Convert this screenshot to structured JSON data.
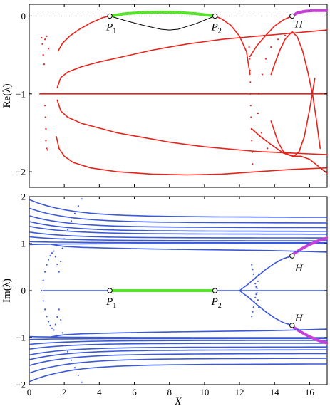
{
  "chart_data": [
    {
      "type": "scatter",
      "title": "",
      "xlabel": "",
      "ylabel": "Re(λ)",
      "xlim": [
        0,
        17
      ],
      "ylim": [
        -2.2,
        0.15
      ],
      "x_ticks": [
        0,
        2,
        4,
        6,
        8,
        10,
        12,
        14,
        16
      ],
      "y_ticks": [
        "0",
        "−1",
        "−2"
      ],
      "grid": false,
      "reference_line": {
        "y": 0,
        "style": "dashed"
      },
      "colors": {
        "branch": "#e8231c",
        "stable_segment": "#56e32a",
        "hopf_segment": "#c63fd6",
        "connector": "#000000"
      },
      "series": [
        {
          "style": "line",
          "color": "#e8231c",
          "x": [
            1.65,
            1.9,
            2.3,
            2.8,
            3.5,
            4.2,
            4.6
          ],
          "y": [
            -0.45,
            -0.35,
            -0.26,
            -0.18,
            -0.09,
            -0.02,
            0.0
          ]
        },
        {
          "style": "line",
          "color": "#e8231c",
          "x": [
            10.6,
            11.0,
            11.5,
            12.0,
            12.4,
            12.6
          ],
          "y": [
            0.0,
            -0.04,
            -0.12,
            -0.26,
            -0.46,
            -0.75
          ]
        },
        {
          "style": "line",
          "color": "#e8231c",
          "x": [
            1.55,
            1.7,
            2.0,
            2.5,
            3.5,
            5.0,
            7.0,
            9.0,
            11.0,
            13.0,
            15.0,
            17.0
          ],
          "y": [
            -1.55,
            -1.7,
            -1.8,
            -1.88,
            -1.95,
            -2.0,
            -2.03,
            -2.04,
            -2.03,
            -2.0,
            -1.97,
            -1.95
          ]
        },
        {
          "style": "line",
          "color": "#e8231c",
          "x": [
            1.6,
            1.8,
            2.2,
            3.0,
            4.0,
            5.0,
            6.0,
            7.0,
            8.0,
            9.0,
            10.0,
            11.0,
            12.0,
            13.0,
            14.0,
            15.0,
            16.0,
            17.0
          ],
          "y": [
            -0.92,
            -0.79,
            -0.72,
            -0.65,
            -0.59,
            -0.54,
            -0.49,
            -0.44,
            -0.4,
            -0.36,
            -0.33,
            -0.3,
            -0.28,
            -0.26,
            -0.24,
            -0.22,
            -0.2,
            -0.18
          ]
        },
        {
          "style": "line",
          "color": "#e8231c",
          "x": [
            0.6,
            17.0
          ],
          "y": [
            -1.0,
            -1.0
          ]
        },
        {
          "style": "line",
          "color": "#e8231c",
          "x": [
            1.6,
            1.8,
            2.2,
            3.0,
            4.0,
            5.0,
            6.0,
            7.0,
            8.0,
            9.0,
            10.0,
            11.0,
            12.0,
            13.0,
            14.0,
            15.0,
            16.0,
            17.0
          ],
          "y": [
            -1.08,
            -1.22,
            -1.3,
            -1.38,
            -1.44,
            -1.5,
            -1.54,
            -1.58,
            -1.62,
            -1.65,
            -1.68,
            -1.7,
            -1.72,
            -1.74,
            -1.75,
            -1.76,
            -1.77,
            -1.78
          ]
        },
        {
          "style": "line",
          "color": "#e8231c",
          "x": [
            12.6,
            13.0,
            13.5,
            14.0,
            14.5,
            15.0
          ],
          "y": [
            -0.52,
            -0.38,
            -0.25,
            -0.13,
            -0.05,
            0.0
          ]
        },
        {
          "style": "line",
          "color": "#e8231c",
          "x": [
            12.7,
            13.2,
            13.8,
            14.5,
            15.0,
            15.5,
            16.0,
            16.5,
            17.0
          ],
          "y": [
            -1.45,
            -1.55,
            -1.65,
            -1.76,
            -1.8,
            -1.8,
            -1.84,
            -1.93,
            -2.02
          ]
        },
        {
          "style": "line",
          "color": "#e8231c",
          "x": [
            13.8,
            14.2,
            14.5,
            14.8,
            15.1,
            15.4,
            15.7,
            16.0,
            16.3
          ],
          "y": [
            -1.35,
            -1.62,
            -1.74,
            -1.78,
            -1.8,
            -1.74,
            -1.55,
            -1.2,
            -0.8
          ]
        },
        {
          "style": "line",
          "color": "#e8231c",
          "x": [
            13.8,
            14.0,
            14.3,
            14.6,
            15.0,
            15.3,
            15.6,
            15.9,
            16.2,
            16.4,
            16.6
          ],
          "y": [
            -0.75,
            -0.62,
            -0.44,
            -0.3,
            -0.2,
            -0.27,
            -0.45,
            -0.72,
            -1.05,
            -1.35,
            -1.7
          ]
        },
        {
          "style": "dots",
          "color": "#e8231c",
          "x": [
            0.7,
            0.75,
            0.8,
            0.85,
            0.9,
            0.9,
            0.92,
            0.95,
            0.95,
            1.0,
            1.0,
            1.05,
            1.1
          ],
          "y": [
            -0.28,
            -0.36,
            -0.5,
            -0.62,
            -0.3,
            -1.15,
            -1.3,
            -1.45,
            -1.6,
            -1.7,
            -0.26,
            -1.72,
            -0.42
          ]
        },
        {
          "style": "dots",
          "color": "#e8231c",
          "x": [
            12.55,
            12.58,
            12.6,
            12.62,
            12.63,
            12.64,
            12.66,
            12.68,
            12.7,
            12.72,
            12.74
          ],
          "y": [
            -0.4,
            -0.55,
            -0.7,
            -0.85,
            -1.0,
            -1.15,
            -1.3,
            -1.45,
            -1.6,
            -1.75,
            -1.9
          ]
        },
        {
          "style": "dots",
          "color": "#e8231c",
          "x": [
            13.1,
            13.3,
            13.5,
            13.8,
            14.2,
            14.6,
            13.05,
            13.25,
            13.6
          ],
          "y": [
            -1.0,
            -0.75,
            -0.55,
            -0.4,
            -0.3,
            -0.25,
            -1.25,
            -1.5,
            -1.7
          ]
        },
        {
          "style": "line",
          "color": "#000000",
          "name": "",
          "x": [
            4.6,
            5.5,
            6.5,
            7.5,
            8.0,
            8.5,
            9.5,
            10.6
          ],
          "y": [
            0.0,
            -0.06,
            -0.12,
            -0.17,
            -0.18,
            -0.17,
            -0.1,
            0.0
          ]
        },
        {
          "style": "thick",
          "color": "#56e32a",
          "x": [
            4.6,
            5.5,
            6.5,
            7.5,
            8.5,
            9.5,
            10.6
          ],
          "y": [
            0.0,
            0.03,
            0.045,
            0.05,
            0.045,
            0.03,
            0.0
          ]
        },
        {
          "style": "thick",
          "color": "#c63fd6",
          "x": [
            15.0,
            15.3,
            15.7,
            16.2,
            17.0
          ],
          "y": [
            0.0,
            0.04,
            0.06,
            0.07,
            0.07
          ]
        }
      ],
      "points": [
        {
          "label": "P",
          "sub": "1",
          "x": 4.6,
          "y": 0.0
        },
        {
          "label": "P",
          "sub": "2",
          "x": 10.6,
          "y": 0.0
        },
        {
          "label": "H",
          "sub": "",
          "x": 15.0,
          "y": 0.0
        }
      ]
    },
    {
      "type": "scatter",
      "title": "",
      "xlabel": "X",
      "ylabel": "Im(λ)",
      "xlim": [
        0,
        17
      ],
      "ylim": [
        -2,
        2
      ],
      "x_ticks": [
        "0",
        "2",
        "4",
        "6",
        "8",
        "10",
        "12",
        "14",
        "16"
      ],
      "y_ticks": [
        "2",
        "1",
        "0",
        "−1",
        "−2"
      ],
      "grid": false,
      "colors": {
        "branch": "#3b59d6",
        "stable_segment": "#56e32a",
        "hopf_segment": "#c63fd6"
      },
      "branches_y0": [
        1.92,
        1.74,
        1.58,
        1.46,
        1.36,
        1.24,
        1.14,
        1.04,
        0.98
      ],
      "branches_y17": [
        1.56,
        1.44,
        1.34,
        1.26,
        1.2,
        1.12,
        1.06,
        1.02,
        1.0
      ],
      "series": [
        {
          "style": "line",
          "color": "#3b59d6",
          "x": [
            0.8,
            17.0
          ],
          "y": [
            0.0,
            0.0
          ]
        },
        {
          "style": "thick",
          "color": "#56e32a",
          "x": [
            4.6,
            10.6
          ],
          "y": [
            0.0,
            0.0
          ]
        },
        {
          "style": "line",
          "color": "#3b59d6",
          "x": [
            12.0,
            12.5,
            13.0,
            13.5,
            14.0,
            14.5,
            15.0
          ],
          "y": [
            0.0,
            0.14,
            0.3,
            0.45,
            0.58,
            0.68,
            0.74
          ]
        },
        {
          "style": "line",
          "color": "#3b59d6",
          "x": [
            12.0,
            12.5,
            13.0,
            13.5,
            14.0,
            14.5,
            15.0
          ],
          "y": [
            0.0,
            -0.14,
            -0.3,
            -0.45,
            -0.58,
            -0.68,
            -0.74
          ]
        },
        {
          "style": "thick",
          "color": "#c63fd6",
          "x": [
            15.0,
            15.5,
            16.0,
            16.5,
            17.0
          ],
          "y": [
            0.76,
            0.88,
            0.98,
            1.06,
            1.12
          ]
        },
        {
          "style": "thick",
          "color": "#c63fd6",
          "x": [
            15.0,
            15.5,
            16.0,
            16.5,
            17.0
          ],
          "y": [
            -0.76,
            -0.88,
            -0.98,
            -1.06,
            -1.12
          ]
        },
        {
          "style": "line",
          "color": "#3b59d6",
          "x": [
            1.3,
            2.0,
            3.0,
            4.0,
            5.0,
            6.5,
            8.0,
            10.0,
            12.0,
            14.0,
            16.0,
            17.0
          ],
          "y": [
            0.98,
            0.94,
            0.92,
            0.91,
            0.9,
            0.89,
            0.88,
            0.87,
            0.86,
            0.85,
            0.83,
            0.82
          ]
        },
        {
          "style": "line",
          "color": "#3b59d6",
          "x": [
            1.3,
            2.0,
            3.0,
            4.0,
            5.0,
            6.5,
            8.0,
            10.0,
            12.0,
            14.0,
            16.0,
            17.0
          ],
          "y": [
            -0.98,
            -0.94,
            -0.92,
            -0.91,
            -0.9,
            -0.89,
            -0.88,
            -0.87,
            -0.86,
            -0.85,
            -0.83,
            -0.82
          ]
        },
        {
          "style": "dots",
          "color": "#3b59d6",
          "x": [
            0.7,
            0.8,
            0.9,
            1.0,
            1.1,
            1.2,
            1.3,
            1.4,
            1.5,
            1.6,
            1.7,
            1.8,
            1.9,
            2.0,
            2.2,
            2.4,
            2.6,
            2.8,
            3.0
          ],
          "y": [
            0.0,
            0.22,
            0.4,
            0.55,
            0.66,
            0.74,
            0.8,
            0.84,
            0.72,
            0.56,
            0.4,
            0.62,
            0.9,
            1.1,
            1.3,
            1.48,
            1.64,
            1.8,
            1.95
          ]
        },
        {
          "style": "dots",
          "color": "#3b59d6",
          "x": [
            0.7,
            0.8,
            0.9,
            1.0,
            1.1,
            1.2,
            1.3,
            1.4,
            1.5,
            1.6,
            1.7,
            1.8,
            1.9,
            2.0,
            2.2,
            2.4,
            2.6,
            2.8,
            3.0
          ],
          "y": [
            0.0,
            -0.22,
            -0.4,
            -0.55,
            -0.66,
            -0.74,
            -0.8,
            -0.84,
            -0.72,
            -0.56,
            -0.4,
            -0.62,
            -0.9,
            -1.1,
            -1.3,
            -1.48,
            -1.64,
            -1.8,
            -1.95
          ]
        },
        {
          "style": "dots",
          "color": "#3b59d6",
          "x": [
            12.7,
            12.75,
            12.8,
            12.85,
            12.9,
            12.95,
            13.0,
            13.05,
            13.1
          ],
          "y": [
            0.55,
            0.45,
            0.35,
            0.25,
            0.15,
            0.08,
            -0.05,
            -0.2,
            -0.35
          ]
        },
        {
          "style": "dots",
          "color": "#3b59d6",
          "x": [
            12.7,
            12.75,
            12.8,
            12.85,
            12.9,
            12.95,
            13.0,
            13.05,
            13.1
          ],
          "y": [
            -0.55,
            -0.45,
            -0.35,
            -0.25,
            -0.15,
            -0.08,
            0.05,
            0.2,
            0.35
          ]
        }
      ],
      "points": [
        {
          "label": "P",
          "sub": "1",
          "x": 4.6,
          "y": 0.0
        },
        {
          "label": "P",
          "sub": "2",
          "x": 10.6,
          "y": 0.0
        },
        {
          "label": "H",
          "sub": "",
          "x": 15.0,
          "y": 0.74
        },
        {
          "label": "H",
          "sub": "",
          "x": 15.0,
          "y": -0.74
        }
      ]
    }
  ]
}
